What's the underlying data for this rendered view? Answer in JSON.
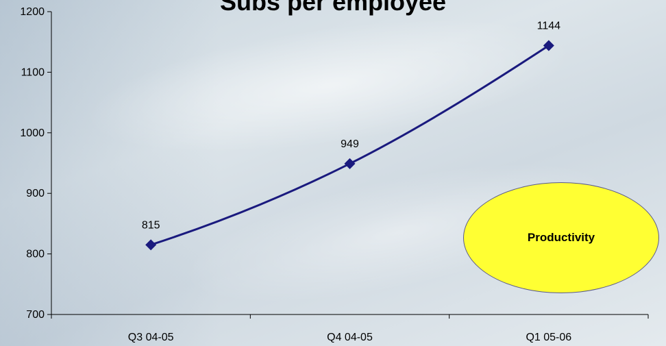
{
  "chart_data": {
    "type": "line",
    "title": "Subs per employee",
    "categories": [
      "Q3 04-05",
      "Q4 04-05",
      "Q1 05-06"
    ],
    "series": [
      {
        "values": [
          815,
          949,
          1144
        ],
        "color": "#1a1a7e"
      }
    ],
    "data_labels": [
      "815",
      "949",
      "1144"
    ],
    "ylim": [
      700,
      1200
    ],
    "yticks": [
      700,
      800,
      900,
      1000,
      1100,
      1200
    ],
    "grid": false,
    "marker": "diamond"
  },
  "annotation": {
    "label": "Productivity",
    "fill": "#ffff33"
  }
}
